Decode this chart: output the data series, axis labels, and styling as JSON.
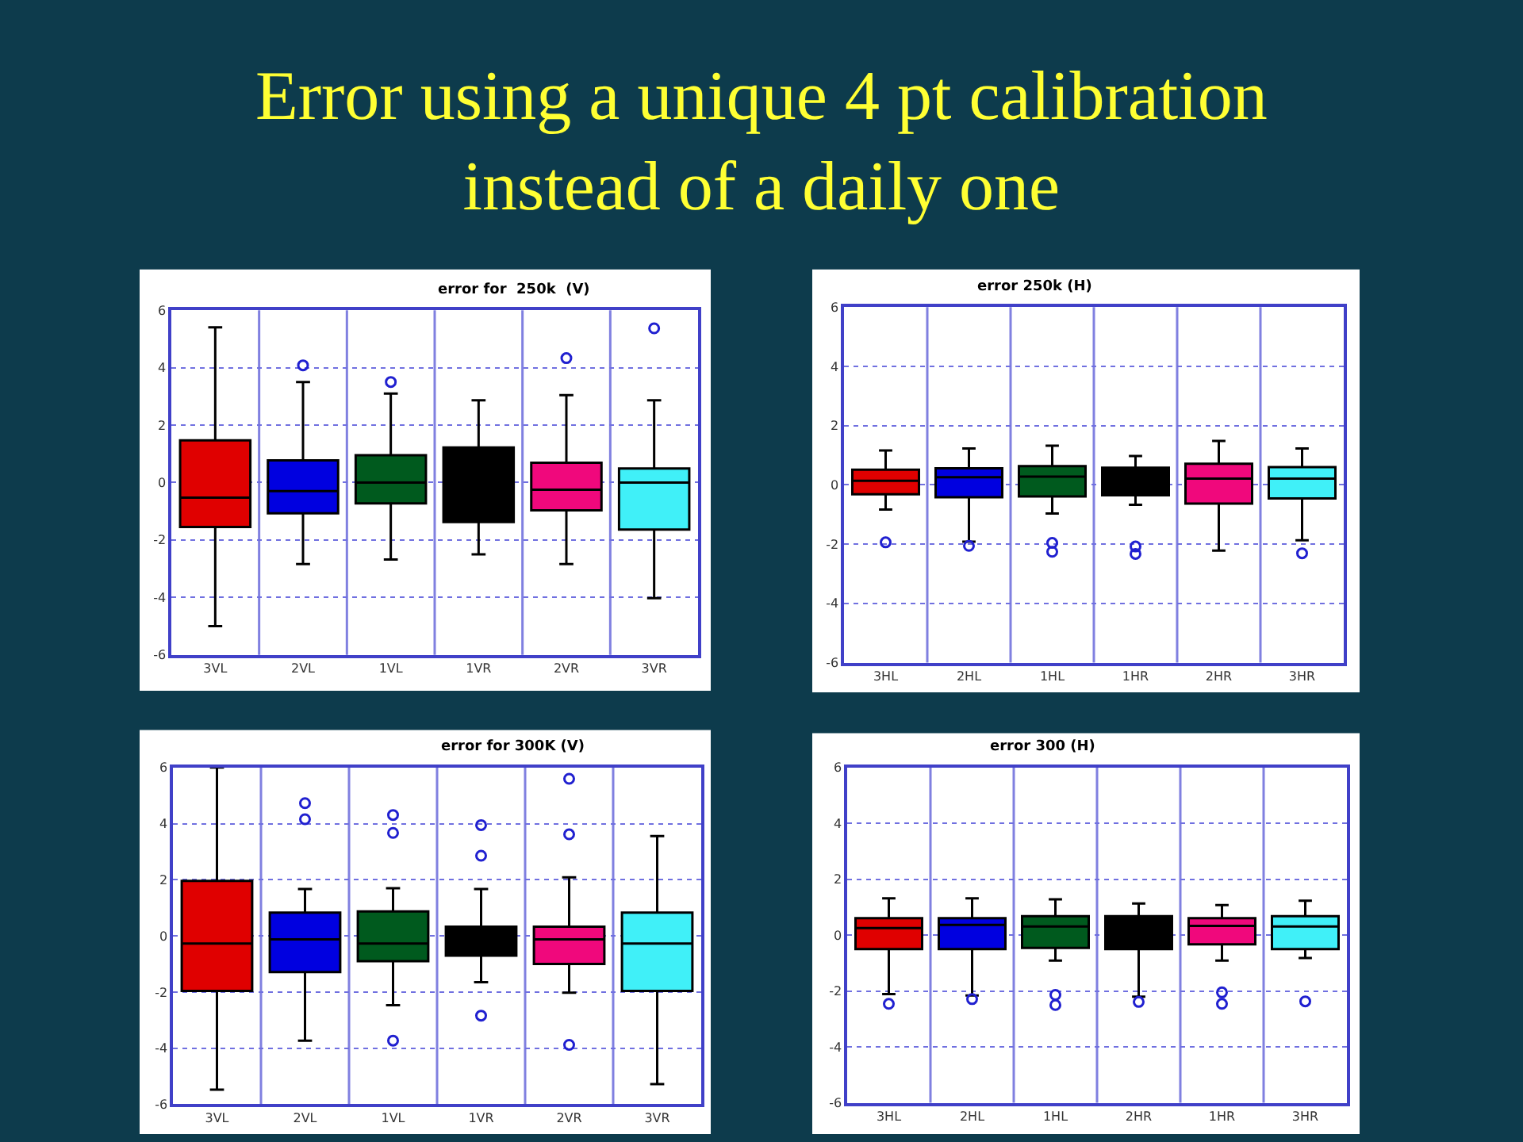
{
  "chart_data": [
    {
      "type": "box",
      "title": "error for  250k  (V)",
      "annotations": [
        "Error using a unique 4 pt calibration\ninstead of a daily one"
      ],
      "categories": [
        "3VL",
        "2VL",
        "1VL",
        "1VR",
        "2VR",
        "3VR"
      ],
      "colors": [
        "#e00000",
        "#0000e0",
        "#005a1e",
        "#000000",
        "#f0087c",
        "#40f0f8"
      ],
      "ylim": [
        -6,
        6
      ],
      "yticks": [
        -6,
        -4,
        -2,
        0,
        2,
        4,
        6
      ],
      "grid": true,
      "boxes": [
        {
          "low": -5.0,
          "q1": -1.55,
          "median": -0.53,
          "q3": 1.47,
          "high": 5.4
        },
        {
          "low": -2.84,
          "q1": -1.07,
          "median": -0.3,
          "q3": 0.77,
          "high": 3.5,
          "outliers": [
            4.08
          ]
        },
        {
          "low": -2.68,
          "q1": -0.73,
          "median": 0.0,
          "q3": 0.95,
          "high": 3.1,
          "outliers": [
            3.5
          ]
        },
        {
          "low": -2.5,
          "q1": -1.38,
          "median": 0.0,
          "q3": 1.22,
          "high": 2.86
        },
        {
          "low": -2.84,
          "q1": -0.97,
          "median": -0.25,
          "q3": 0.69,
          "high": 3.04,
          "outliers": [
            4.33
          ]
        },
        {
          "low": -4.03,
          "q1": -1.64,
          "median": 0.0,
          "q3": 0.49,
          "high": 2.86,
          "outliers": [
            5.37
          ]
        }
      ]
    },
    {
      "type": "box",
      "title": "error 250k (H)",
      "categories": [
        "3HL",
        "2HL",
        "1HL",
        "1HR",
        "2HR",
        "3HR"
      ],
      "colors": [
        "#e00000",
        "#0000e0",
        "#005a1e",
        "#000000",
        "#f0087c",
        "#40f0f8"
      ],
      "ylim": [
        -6,
        6
      ],
      "yticks": [
        -6,
        -4,
        -2,
        0,
        2,
        4,
        6
      ],
      "grid": true,
      "boxes": [
        {
          "low": -0.83,
          "q1": -0.32,
          "median": 0.14,
          "q3": 0.51,
          "high": 1.16,
          "outliers": [
            -1.94
          ]
        },
        {
          "low": -1.92,
          "q1": -0.42,
          "median": 0.26,
          "q3": 0.56,
          "high": 1.23,
          "outliers": [
            -2.06
          ]
        },
        {
          "low": -0.97,
          "q1": -0.39,
          "median": 0.28,
          "q3": 0.63,
          "high": 1.32,
          "outliers": [
            -1.96,
            -2.26
          ]
        },
        {
          "low": -0.67,
          "q1": -0.35,
          "median": 0.1,
          "q3": 0.58,
          "high": 0.97,
          "outliers": [
            -2.08,
            -2.33
          ]
        },
        {
          "low": -2.22,
          "q1": -0.63,
          "median": 0.21,
          "q3": 0.71,
          "high": 1.48
        },
        {
          "low": -1.87,
          "q1": -0.46,
          "median": 0.21,
          "q3": 0.6,
          "high": 1.23,
          "outliers": [
            -2.31
          ]
        }
      ]
    },
    {
      "type": "box",
      "title": "error for 300K (V)",
      "categories": [
        "3VL",
        "2VL",
        "1VL",
        "1VR",
        "2VR",
        "3VR"
      ],
      "colors": [
        "#e00000",
        "#0000e0",
        "#005a1e",
        "#000000",
        "#f0087c",
        "#40f0f8"
      ],
      "ylim": [
        -6,
        6
      ],
      "yticks": [
        -6,
        -4,
        -2,
        0,
        2,
        4,
        6
      ],
      "grid": true,
      "boxes": [
        {
          "low": -5.48,
          "q1": -1.96,
          "median": -0.27,
          "q3": 1.96,
          "high": 6.0
        },
        {
          "low": -3.73,
          "q1": -1.29,
          "median": -0.12,
          "q3": 0.83,
          "high": 1.67,
          "outliers": [
            4.73,
            4.16
          ]
        },
        {
          "low": -2.47,
          "q1": -0.9,
          "median": -0.27,
          "q3": 0.87,
          "high": 1.7,
          "outliers": [
            4.31,
            3.67,
            -3.73
          ]
        },
        {
          "low": -1.65,
          "q1": -0.7,
          "median": 0.0,
          "q3": 0.33,
          "high": 1.67,
          "outliers": [
            3.95,
            2.86,
            -2.84
          ]
        },
        {
          "low": -2.02,
          "q1": -1.0,
          "median": -0.12,
          "q3": 0.33,
          "high": 2.09,
          "outliers": [
            5.6,
            3.62,
            -3.88
          ]
        },
        {
          "low": -5.28,
          "q1": -1.96,
          "median": -0.27,
          "q3": 0.83,
          "high": 3.56
        }
      ]
    },
    {
      "type": "box",
      "title": "error 300 (H)",
      "categories": [
        "3HL",
        "2HL",
        "1HL",
        "2HR",
        "1HR",
        "3HR"
      ],
      "colors": [
        "#e00000",
        "#0000e0",
        "#005a1e",
        "#000000",
        "#f0087c",
        "#40f0f8"
      ],
      "ylim": [
        -6,
        6
      ],
      "yticks": [
        -6,
        -4,
        -2,
        0,
        2,
        4,
        6
      ],
      "grid": true,
      "boxes": [
        {
          "low": -2.11,
          "q1": -0.5,
          "median": 0.25,
          "q3": 0.61,
          "high": 1.32,
          "outliers": [
            -2.46
          ]
        },
        {
          "low": -2.16,
          "q1": -0.5,
          "median": 0.37,
          "q3": 0.61,
          "high": 1.32,
          "outliers": [
            -2.29
          ]
        },
        {
          "low": -0.91,
          "q1": -0.46,
          "median": 0.31,
          "q3": 0.68,
          "high": 1.28,
          "outliers": [
            -2.14,
            -2.5
          ]
        },
        {
          "low": -2.2,
          "q1": -0.5,
          "median": 0.1,
          "q3": 0.68,
          "high": 1.13,
          "outliers": [
            -2.39
          ]
        },
        {
          "low": -0.91,
          "q1": -0.33,
          "median": 0.33,
          "q3": 0.61,
          "high": 1.08,
          "outliers": [
            -2.05,
            -2.46
          ]
        },
        {
          "low": -0.82,
          "q1": -0.5,
          "median": 0.31,
          "q3": 0.68,
          "high": 1.23,
          "outliers": [
            -2.37
          ]
        }
      ]
    }
  ]
}
